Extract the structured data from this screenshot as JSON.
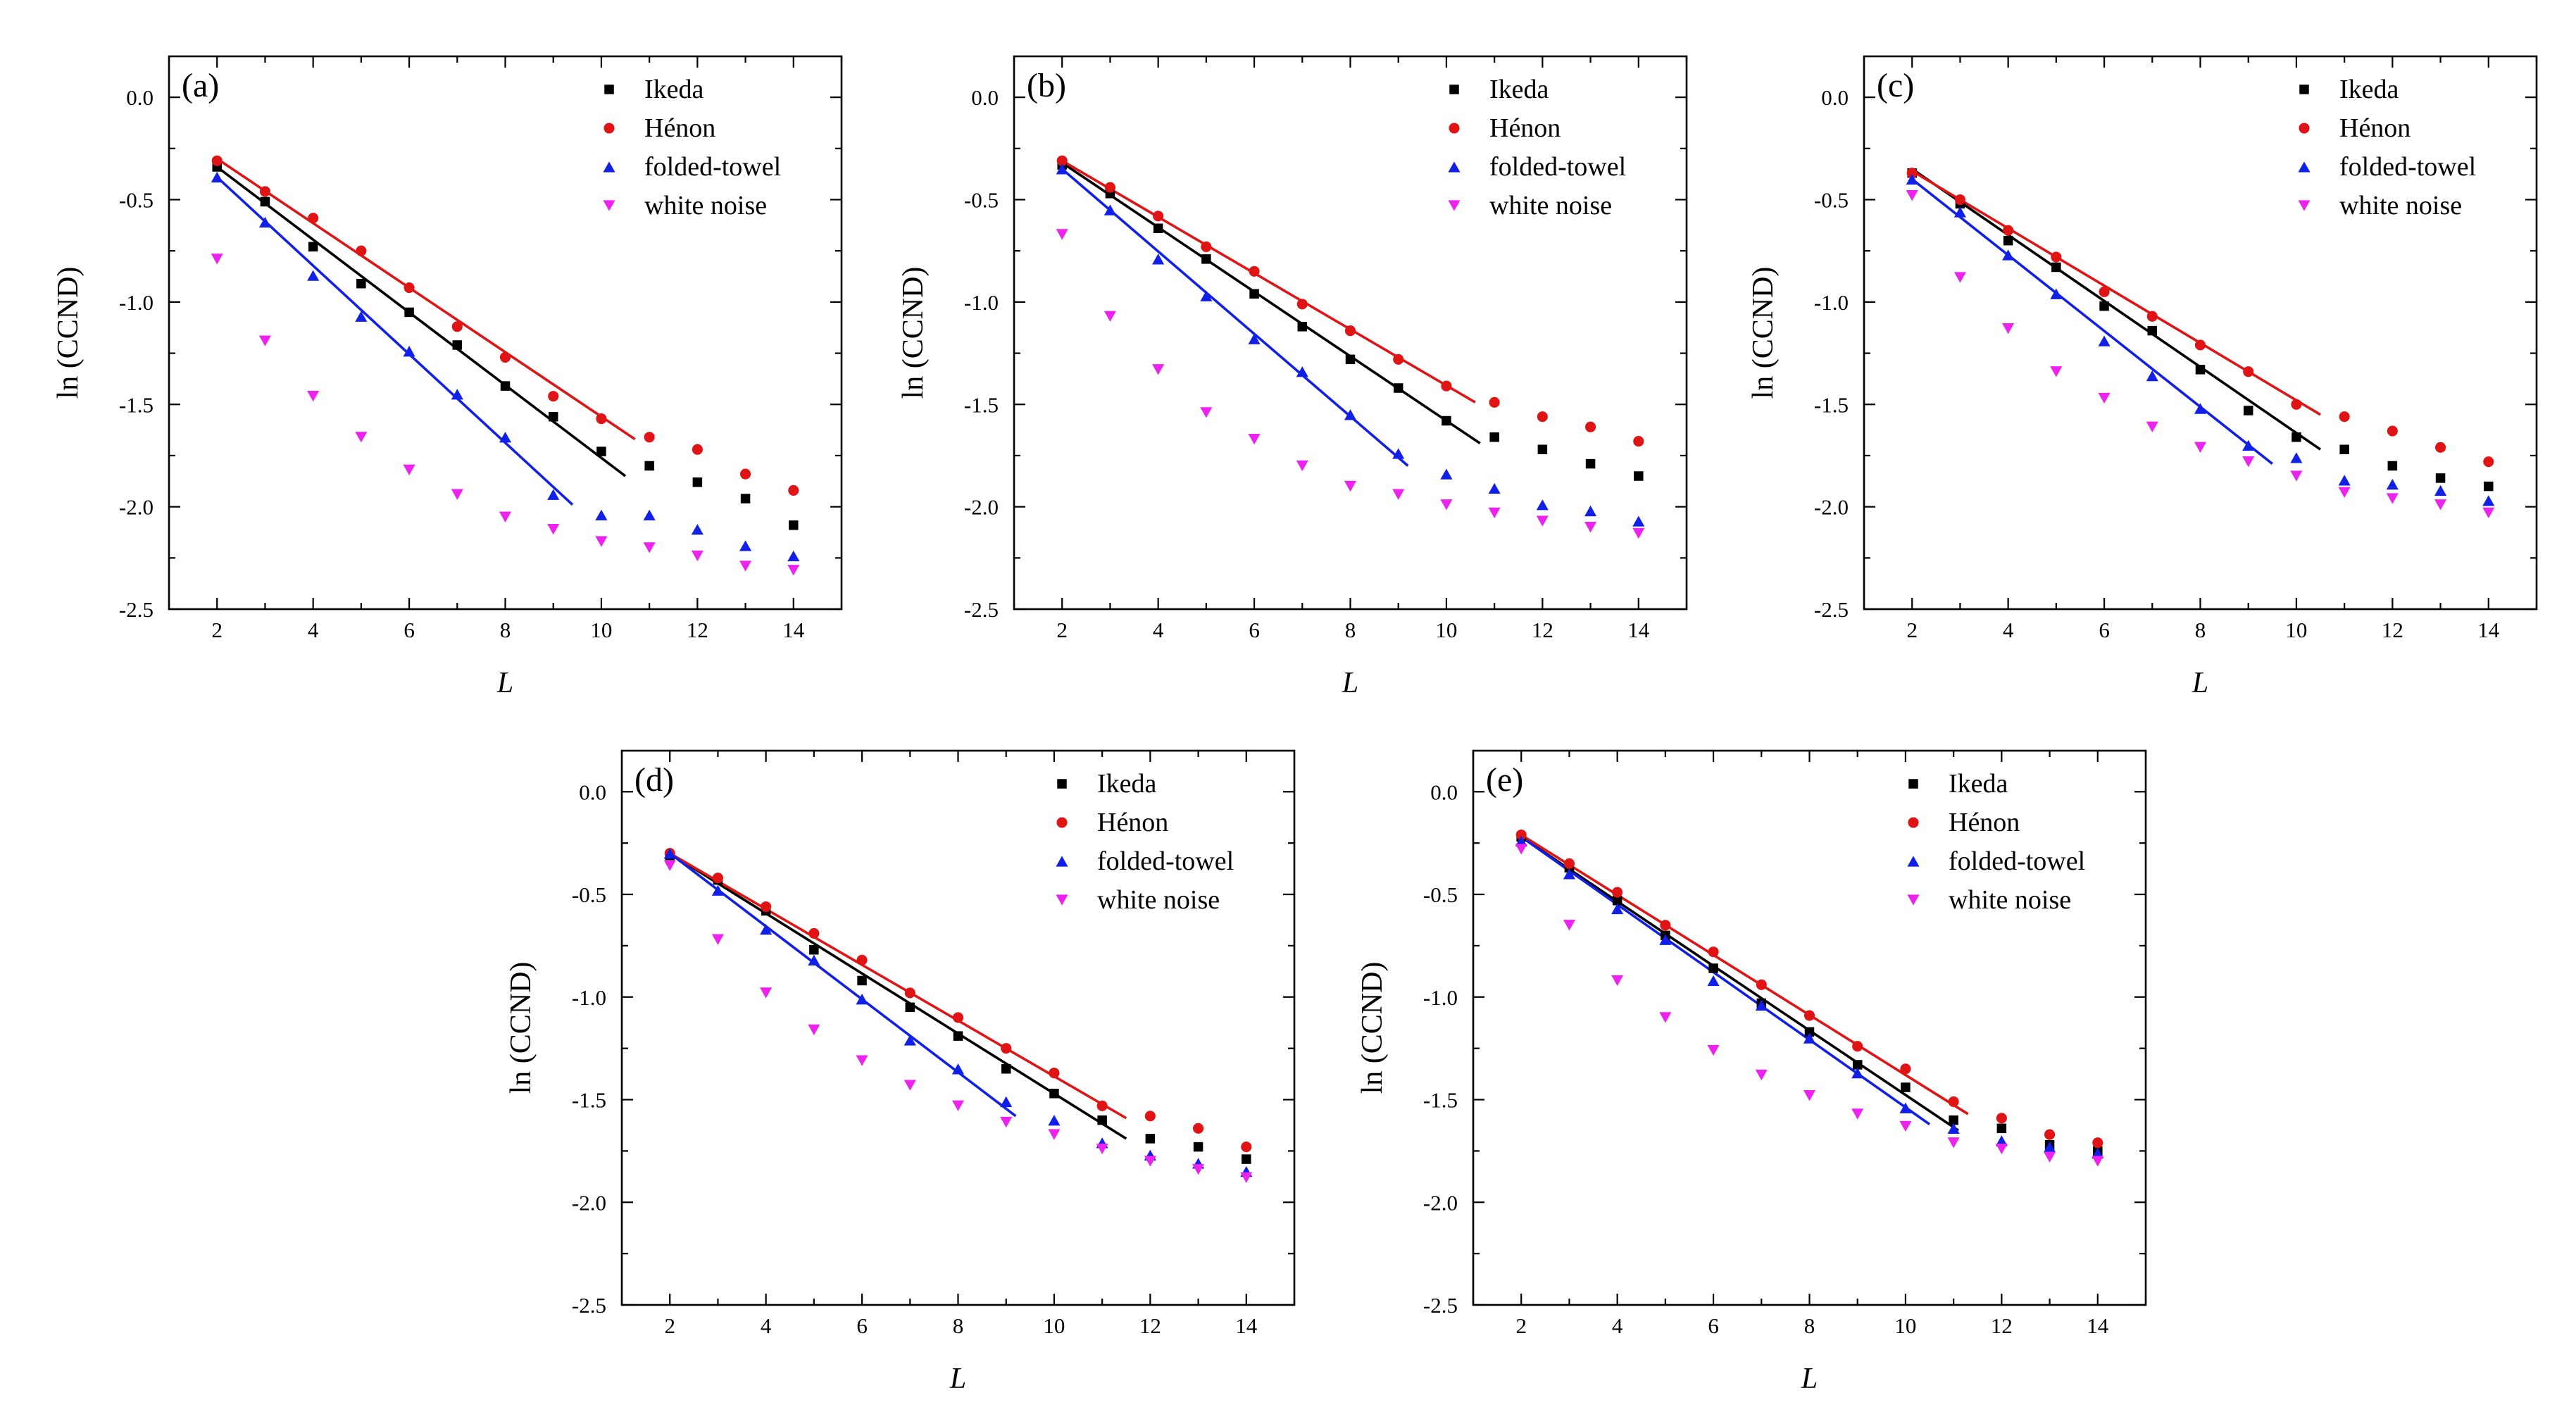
{
  "colors": {
    "ikeda": "#000000",
    "henon": "#e01414",
    "folded_towel": "#1020e8",
    "white_noise": "#ee22ee"
  },
  "chart_data": [
    {
      "type": "scatter",
      "panel_label": "(a)",
      "xlabel": "L",
      "ylabel": "ln (CCND)",
      "xlim": [
        1,
        15
      ],
      "ylim": [
        -2.5,
        0.2
      ],
      "x_ticks": [
        "2",
        "4",
        "6",
        "8",
        "10",
        "12",
        "14"
      ],
      "y_ticks": [
        "0.0",
        "-0.5",
        "-1.0",
        "-1.5",
        "-2.0",
        "-2.5"
      ],
      "x": [
        2,
        3,
        4,
        5,
        6,
        7,
        8,
        9,
        10,
        11,
        12,
        13,
        14
      ],
      "legend": [
        "Ikeda",
        "Hénon",
        "folded-towel",
        "white noise"
      ],
      "series": [
        {
          "key": "ikeda",
          "name": "Ikeda",
          "marker": "square",
          "values": [
            -0.34,
            -0.51,
            -0.73,
            -0.91,
            -1.05,
            -1.21,
            -1.41,
            -1.56,
            -1.73,
            -1.8,
            -1.88,
            -1.96,
            -2.09
          ],
          "fit": [
            [
              2,
              -0.34
            ],
            [
              10.5,
              -1.85
            ]
          ]
        },
        {
          "key": "henon",
          "name": "Hénon",
          "marker": "circle",
          "values": [
            -0.31,
            -0.46,
            -0.59,
            -0.75,
            -0.93,
            -1.12,
            -1.27,
            -1.46,
            -1.57,
            -1.66,
            -1.72,
            -1.84,
            -1.92
          ],
          "fit": [
            [
              2,
              -0.3
            ],
            [
              10.7,
              -1.67
            ]
          ]
        },
        {
          "key": "folded_towel",
          "name": "folded-towel",
          "marker": "triangle-up",
          "values": [
            -0.39,
            -0.61,
            -0.87,
            -1.07,
            -1.24,
            -1.45,
            -1.66,
            -1.94,
            -2.04,
            -2.04,
            -2.11,
            -2.19,
            -2.24
          ],
          "fit": [
            [
              2,
              -0.39
            ],
            [
              9.4,
              -1.99
            ]
          ]
        },
        {
          "key": "white_noise",
          "name": "white noise",
          "marker": "triangle-down",
          "values": [
            -0.79,
            -1.19,
            -1.46,
            -1.66,
            -1.82,
            -1.94,
            -2.05,
            -2.11,
            -2.17,
            -2.2,
            -2.24,
            -2.29,
            -2.31
          ]
        }
      ]
    },
    {
      "type": "scatter",
      "panel_label": "(b)",
      "xlabel": "L",
      "ylabel": "ln (CCND)",
      "xlim": [
        1,
        15
      ],
      "ylim": [
        -2.5,
        0.2
      ],
      "x_ticks": [
        "2",
        "4",
        "6",
        "8",
        "10",
        "12",
        "14"
      ],
      "y_ticks": [
        "0.0",
        "-0.5",
        "-1.0",
        "-1.5",
        "-2.0",
        "-2.5"
      ],
      "x": [
        2,
        3,
        4,
        5,
        6,
        7,
        8,
        9,
        10,
        11,
        12,
        13,
        14
      ],
      "legend": [
        "Ikeda",
        "Hénon",
        "folded-towel",
        "white noise"
      ],
      "series": [
        {
          "key": "ikeda",
          "name": "Ikeda",
          "marker": "square",
          "values": [
            -0.33,
            -0.47,
            -0.64,
            -0.79,
            -0.96,
            -1.12,
            -1.28,
            -1.42,
            -1.58,
            -1.66,
            -1.72,
            -1.79,
            -1.85
          ],
          "fit": [
            [
              2,
              -0.32
            ],
            [
              10.7,
              -1.69
            ]
          ]
        },
        {
          "key": "henon",
          "name": "Hénon",
          "marker": "circle",
          "values": [
            -0.31,
            -0.44,
            -0.58,
            -0.73,
            -0.85,
            -1.01,
            -1.14,
            -1.28,
            -1.41,
            -1.49,
            -1.56,
            -1.61,
            -1.68
          ],
          "fit": [
            [
              2,
              -0.31
            ],
            [
              10.6,
              -1.49
            ]
          ]
        },
        {
          "key": "folded_towel",
          "name": "folded-towel",
          "marker": "triangle-up",
          "values": [
            -0.35,
            -0.55,
            -0.79,
            -0.97,
            -1.18,
            -1.34,
            -1.55,
            -1.74,
            -1.84,
            -1.91,
            -1.99,
            -2.02,
            -2.07
          ],
          "fit": [
            [
              2,
              -0.35
            ],
            [
              9.2,
              -1.8
            ]
          ]
        },
        {
          "key": "white_noise",
          "name": "white noise",
          "marker": "triangle-down",
          "values": [
            -0.67,
            -1.07,
            -1.33,
            -1.54,
            -1.67,
            -1.8,
            -1.9,
            -1.94,
            -1.99,
            -2.03,
            -2.07,
            -2.1,
            -2.13
          ]
        }
      ]
    },
    {
      "type": "scatter",
      "panel_label": "(c)",
      "xlabel": "L",
      "ylabel": "ln (CCND)",
      "xlim": [
        1,
        15
      ],
      "ylim": [
        -2.5,
        0.2
      ],
      "x_ticks": [
        "2",
        "4",
        "6",
        "8",
        "10",
        "12",
        "14"
      ],
      "y_ticks": [
        "0.0",
        "-0.5",
        "-1.0",
        "-1.5",
        "-2.0",
        "-2.5"
      ],
      "x": [
        2,
        3,
        4,
        5,
        6,
        7,
        8,
        9,
        10,
        11,
        12,
        13,
        14
      ],
      "legend": [
        "Ikeda",
        "Hénon",
        "folded-towel",
        "white noise"
      ],
      "series": [
        {
          "key": "ikeda",
          "name": "Ikeda",
          "marker": "square",
          "values": [
            -0.37,
            -0.52,
            -0.7,
            -0.83,
            -1.02,
            -1.14,
            -1.33,
            -1.53,
            -1.66,
            -1.72,
            -1.8,
            -1.86,
            -1.9
          ],
          "fit": [
            [
              2,
              -0.35
            ],
            [
              10.5,
              -1.72
            ]
          ]
        },
        {
          "key": "henon",
          "name": "Hénon",
          "marker": "circle",
          "values": [
            -0.37,
            -0.5,
            -0.65,
            -0.78,
            -0.95,
            -1.07,
            -1.21,
            -1.34,
            -1.5,
            -1.56,
            -1.63,
            -1.71,
            -1.78
          ],
          "fit": [
            [
              2,
              -0.36
            ],
            [
              10.5,
              -1.55
            ]
          ]
        },
        {
          "key": "folded_towel",
          "name": "folded-towel",
          "marker": "triangle-up",
          "values": [
            -0.4,
            -0.56,
            -0.77,
            -0.96,
            -1.19,
            -1.36,
            -1.52,
            -1.7,
            -1.76,
            -1.87,
            -1.89,
            -1.92,
            -1.97
          ],
          "fit": [
            [
              2,
              -0.4
            ],
            [
              9.5,
              -1.79
            ]
          ]
        },
        {
          "key": "white_noise",
          "name": "white noise",
          "marker": "triangle-down",
          "values": [
            -0.48,
            -0.88,
            -1.13,
            -1.34,
            -1.47,
            -1.61,
            -1.71,
            -1.78,
            -1.85,
            -1.93,
            -1.96,
            -1.99,
            -2.03
          ]
        }
      ]
    },
    {
      "type": "scatter",
      "panel_label": "(d)",
      "xlabel": "L",
      "ylabel": "ln (CCND)",
      "xlim": [
        1,
        15
      ],
      "ylim": [
        -2.5,
        0.2
      ],
      "x_ticks": [
        "2",
        "4",
        "6",
        "8",
        "10",
        "12",
        "14"
      ],
      "y_ticks": [
        "0.0",
        "-0.5",
        "-1.0",
        "-1.5",
        "-2.0",
        "-2.5"
      ],
      "x": [
        2,
        3,
        4,
        5,
        6,
        7,
        8,
        9,
        10,
        11,
        12,
        13,
        14
      ],
      "legend": [
        "Ikeda",
        "Hénon",
        "folded-towel",
        "white noise"
      ],
      "series": [
        {
          "key": "ikeda",
          "name": "Ikeda",
          "marker": "square",
          "values": [
            -0.31,
            -0.43,
            -0.58,
            -0.77,
            -0.92,
            -1.05,
            -1.19,
            -1.35,
            -1.47,
            -1.6,
            -1.69,
            -1.73,
            -1.79
          ],
          "fit": [
            [
              2,
              -0.3
            ],
            [
              11.5,
              -1.69
            ]
          ]
        },
        {
          "key": "henon",
          "name": "Hénon",
          "marker": "circle",
          "values": [
            -0.3,
            -0.42,
            -0.56,
            -0.69,
            -0.82,
            -0.98,
            -1.1,
            -1.25,
            -1.37,
            -1.53,
            -1.58,
            -1.64,
            -1.73
          ],
          "fit": [
            [
              2,
              -0.3
            ],
            [
              11.5,
              -1.59
            ]
          ]
        },
        {
          "key": "folded_towel",
          "name": "folded-towel",
          "marker": "triangle-up",
          "values": [
            -0.3,
            -0.48,
            -0.67,
            -0.82,
            -1.01,
            -1.21,
            -1.35,
            -1.51,
            -1.6,
            -1.71,
            -1.77,
            -1.81,
            -1.85
          ],
          "fit": [
            [
              2,
              -0.3
            ],
            [
              9.2,
              -1.58
            ]
          ]
        },
        {
          "key": "white_noise",
          "name": "white noise",
          "marker": "triangle-down",
          "values": [
            -0.36,
            -0.72,
            -0.98,
            -1.16,
            -1.31,
            -1.43,
            -1.53,
            -1.61,
            -1.67,
            -1.74,
            -1.8,
            -1.84,
            -1.88
          ]
        }
      ]
    },
    {
      "type": "scatter",
      "panel_label": "(e)",
      "xlabel": "L",
      "ylabel": "ln (CCND)",
      "xlim": [
        1,
        15
      ],
      "ylim": [
        -2.5,
        0.2
      ],
      "x_ticks": [
        "2",
        "4",
        "6",
        "8",
        "10",
        "12",
        "14"
      ],
      "y_ticks": [
        "0.0",
        "-0.5",
        "-1.0",
        "-1.5",
        "-2.0",
        "-2.5"
      ],
      "x": [
        2,
        3,
        4,
        5,
        6,
        7,
        8,
        9,
        10,
        11,
        12,
        13,
        14
      ],
      "legend": [
        "Ikeda",
        "Hénon",
        "folded-towel",
        "white noise"
      ],
      "series": [
        {
          "key": "ikeda",
          "name": "Ikeda",
          "marker": "square",
          "values": [
            -0.22,
            -0.37,
            -0.53,
            -0.7,
            -0.86,
            -1.03,
            -1.17,
            -1.33,
            -1.44,
            -1.6,
            -1.64,
            -1.72,
            -1.75
          ],
          "fit": [
            [
              2,
              -0.22
            ],
            [
              11.1,
              -1.65
            ]
          ]
        },
        {
          "key": "henon",
          "name": "Hénon",
          "marker": "circle",
          "values": [
            -0.21,
            -0.35,
            -0.49,
            -0.65,
            -0.78,
            -0.94,
            -1.09,
            -1.24,
            -1.35,
            -1.51,
            -1.59,
            -1.67,
            -1.71
          ],
          "fit": [
            [
              2,
              -0.21
            ],
            [
              11.3,
              -1.57
            ]
          ]
        },
        {
          "key": "folded_towel",
          "name": "folded-towel",
          "marker": "triangle-up",
          "values": [
            -0.24,
            -0.4,
            -0.57,
            -0.72,
            -0.92,
            -1.04,
            -1.2,
            -1.37,
            -1.54,
            -1.64,
            -1.7,
            -1.73,
            -1.76
          ],
          "fit": [
            [
              2,
              -0.22
            ],
            [
              10.5,
              -1.62
            ]
          ]
        },
        {
          "key": "white_noise",
          "name": "white noise",
          "marker": "triangle-down",
          "values": [
            -0.28,
            -0.65,
            -0.92,
            -1.1,
            -1.26,
            -1.38,
            -1.48,
            -1.57,
            -1.63,
            -1.71,
            -1.74,
            -1.78,
            -1.8
          ]
        }
      ]
    }
  ]
}
